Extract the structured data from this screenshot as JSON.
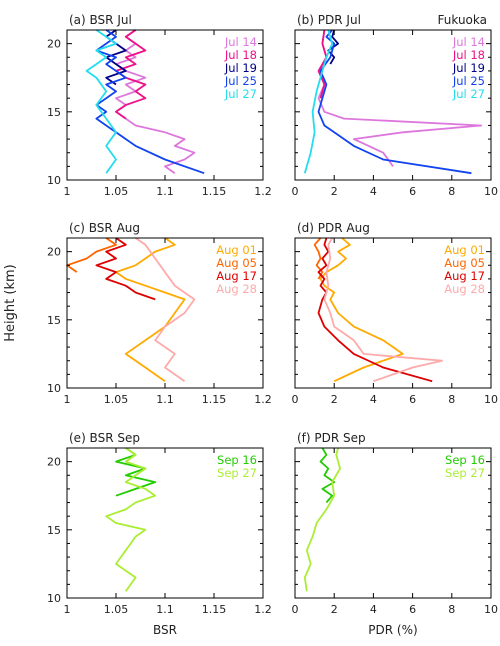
{
  "figure": {
    "ylabel": "Height (km)"
  },
  "chart_data": [
    {
      "type": "line",
      "title": "(a) BSR Jul",
      "xlabel": "",
      "ylabel": "Height (km)",
      "xlim": [
        1,
        1.2
      ],
      "ylim": [
        10,
        21
      ],
      "xticks": [
        "1",
        "1.05",
        "1.1",
        "1.15",
        "1.2"
      ],
      "yticks": [
        "10",
        "15",
        "20"
      ],
      "series": [
        {
          "name": "Jul 14",
          "color": "#dd77dd",
          "y": [
            10.5,
            11.0,
            11.5,
            12.0,
            12.5,
            13.0,
            13.5,
            14.0,
            14.5,
            15.0,
            15.5,
            16.0,
            16.5,
            17.0,
            17.5,
            18.0,
            18.5,
            19.0,
            19.5,
            20.0,
            20.5,
            21.0
          ],
          "x": [
            1.11,
            1.1,
            1.12,
            1.13,
            1.11,
            1.12,
            1.1,
            1.07,
            1.06,
            1.05,
            1.06,
            1.05,
            1.07,
            1.06,
            1.08,
            1.06,
            1.05,
            1.07,
            1.06,
            1.07,
            1.06,
            1.07
          ]
        },
        {
          "name": "Jul 18",
          "color": "#ee1188",
          "y": [
            14.5,
            15.0,
            15.5,
            16.0,
            16.5,
            17.0,
            17.5,
            18.0,
            18.5,
            19.0,
            19.5,
            20.0,
            20.5,
            21.0
          ],
          "x": [
            1.06,
            1.05,
            1.06,
            1.08,
            1.07,
            1.08,
            1.06,
            1.05,
            1.07,
            1.06,
            1.08,
            1.07,
            1.06,
            1.07
          ]
        },
        {
          "name": "Jul 19",
          "color": "#000088",
          "y": [
            17.0,
            17.5,
            18.0,
            18.5,
            19.0,
            19.5,
            20.0,
            20.5,
            21.0
          ],
          "x": [
            1.05,
            1.04,
            1.06,
            1.05,
            1.04,
            1.06,
            1.05,
            1.04,
            1.05
          ]
        },
        {
          "name": "Jul 25",
          "color": "#1144ee",
          "y": [
            10.5,
            11.5,
            12.5,
            13.5,
            14.0,
            14.5,
            15.0,
            15.5,
            16.0,
            16.5,
            17.0,
            17.5,
            18.0,
            18.5,
            19.0,
            19.5,
            20.0,
            20.5,
            21.0
          ],
          "x": [
            1.14,
            1.1,
            1.07,
            1.05,
            1.04,
            1.03,
            1.04,
            1.03,
            1.04,
            1.05,
            1.04,
            1.06,
            1.05,
            1.04,
            1.05,
            1.03,
            1.04,
            1.05,
            1.04
          ]
        },
        {
          "name": "Jul 27",
          "color": "#22ddee",
          "y": [
            10.5,
            11.5,
            12.5,
            13.5,
            14.5,
            15.5,
            16.5,
            17.5,
            18.0,
            18.5,
            19.0,
            19.5,
            20.0,
            20.5,
            21.0
          ],
          "x": [
            1.04,
            1.05,
            1.04,
            1.05,
            1.04,
            1.03,
            1.04,
            1.03,
            1.02,
            1.03,
            1.04,
            1.03,
            1.05,
            1.04,
            1.03
          ]
        }
      ]
    },
    {
      "type": "line",
      "title": "(b) PDR Jul",
      "annotation": "Fukuoka",
      "xlabel": "",
      "xlim": [
        0,
        10
      ],
      "ylim": [
        10,
        21
      ],
      "xticks": [
        "0",
        "2",
        "4",
        "6",
        "8",
        "10"
      ],
      "yticks": [],
      "series": [
        {
          "name": "Jul 14",
          "color": "#dd77dd",
          "y": [
            11.0,
            12.0,
            13.0,
            13.5,
            14.0,
            14.5,
            15.0,
            16.0,
            17.0,
            18.0,
            19.0,
            20.0,
            21.0
          ],
          "x": [
            5.0,
            4.5,
            3.0,
            5.5,
            9.5,
            2.5,
            1.5,
            1.2,
            1.5,
            1.3,
            1.6,
            1.4,
            1.5
          ]
        },
        {
          "name": "Jul 18",
          "color": "#ee1188",
          "y": [
            16.0,
            17.0,
            18.0,
            19.0,
            20.0,
            21.0
          ],
          "x": [
            1.3,
            1.5,
            1.2,
            1.6,
            1.4,
            1.5
          ]
        },
        {
          "name": "Jul 19",
          "color": "#000088",
          "y": [
            18.5,
            19.0,
            19.5,
            20.0,
            20.5,
            21.0
          ],
          "x": [
            1.8,
            2.0,
            1.7,
            2.2,
            1.9,
            2.0
          ]
        },
        {
          "name": "Jul 25",
          "color": "#1144ee",
          "y": [
            10.5,
            11.5,
            12.5,
            13.5,
            14.0,
            15.0,
            16.0,
            17.0,
            18.0,
            19.0,
            20.0,
            20.5,
            21.0
          ],
          "x": [
            9.0,
            4.5,
            3.0,
            2.0,
            1.5,
            1.2,
            1.4,
            1.6,
            1.3,
            1.8,
            2.0,
            1.6,
            1.9
          ]
        },
        {
          "name": "Jul 27",
          "color": "#22ddee",
          "y": [
            10.5,
            12.0,
            13.5,
            15.0,
            16.5,
            18.0,
            19.0,
            20.0,
            21.0
          ],
          "x": [
            0.5,
            0.8,
            1.0,
            0.9,
            1.1,
            1.4,
            1.6,
            1.9,
            1.7
          ]
        }
      ]
    },
    {
      "type": "line",
      "title": "(c) BSR Aug",
      "xlabel": "",
      "xlim": [
        1,
        1.2
      ],
      "ylim": [
        10,
        21
      ],
      "xticks": [
        "1",
        "1.05",
        "1.1",
        "1.15",
        "1.2"
      ],
      "yticks": [
        "10",
        "15",
        "20"
      ],
      "series": [
        {
          "name": "Aug 01",
          "color": "#ffaa00",
          "y": [
            10.5,
            11.5,
            12.5,
            13.5,
            14.5,
            15.5,
            16.5,
            17.0,
            17.5,
            18.0,
            18.5,
            19.0,
            19.5,
            20.0,
            20.5,
            21.0
          ],
          "x": [
            1.1,
            1.08,
            1.06,
            1.08,
            1.1,
            1.11,
            1.12,
            1.1,
            1.08,
            1.06,
            1.05,
            1.07,
            1.08,
            1.09,
            1.11,
            1.1
          ]
        },
        {
          "name": "Aug 05",
          "color": "#ff6600",
          "y": [
            18.5,
            19.0,
            19.5,
            20.0,
            20.5,
            21.0
          ],
          "x": [
            1.01,
            1.0,
            1.02,
            1.03,
            1.05,
            1.04
          ]
        },
        {
          "name": "Aug 17",
          "color": "#dd0000",
          "y": [
            16.5,
            17.0,
            17.5,
            18.0,
            18.5,
            19.0,
            19.5,
            20.0,
            20.5,
            21.0
          ],
          "x": [
            1.09,
            1.07,
            1.06,
            1.04,
            1.05,
            1.03,
            1.05,
            1.04,
            1.06,
            1.05
          ]
        },
        {
          "name": "Aug 28",
          "color": "#ffaaaa",
          "y": [
            10.5,
            11.5,
            12.5,
            13.5,
            14.5,
            15.5,
            16.5,
            17.5,
            18.5,
            19.5,
            20.5,
            21.0
          ],
          "x": [
            1.12,
            1.1,
            1.11,
            1.09,
            1.1,
            1.12,
            1.13,
            1.11,
            1.1,
            1.09,
            1.08,
            1.07
          ]
        }
      ]
    },
    {
      "type": "line",
      "title": "(d) PDR Aug",
      "xlabel": "",
      "xlim": [
        0,
        10
      ],
      "ylim": [
        10,
        21
      ],
      "xticks": [
        "0",
        "2",
        "4",
        "6",
        "8",
        "10"
      ],
      "yticks": [],
      "series": [
        {
          "name": "Aug 01",
          "color": "#ffaa00",
          "y": [
            10.5,
            11.5,
            12.5,
            13.5,
            14.5,
            15.5,
            16.5,
            17.0,
            17.5,
            18.0,
            18.5,
            19.0,
            19.5,
            20.0,
            20.5,
            21.0
          ],
          "x": [
            2.0,
            3.5,
            5.5,
            4.5,
            3.0,
            2.2,
            1.8,
            2.0,
            1.5,
            1.3,
            1.6,
            2.2,
            2.6,
            2.2,
            2.8,
            2.4
          ]
        },
        {
          "name": "Aug 05",
          "color": "#ff6600",
          "y": [
            18.0,
            18.5,
            19.0,
            19.5,
            20.0,
            20.5,
            21.0
          ],
          "x": [
            1.2,
            1.4,
            1.1,
            1.3,
            1.2,
            1.0,
            1.3
          ]
        },
        {
          "name": "Aug 17",
          "color": "#dd0000",
          "y": [
            10.5,
            11.5,
            12.5,
            13.5,
            14.5,
            15.5,
            16.5,
            17.0,
            17.5,
            18.0,
            18.5,
            19.0,
            19.5,
            20.0,
            20.5,
            21.0
          ],
          "x": [
            7.0,
            4.5,
            3.0,
            2.2,
            1.5,
            1.2,
            1.4,
            1.6,
            1.3,
            1.5,
            1.2,
            1.6,
            1.4,
            1.7,
            1.5,
            1.6
          ]
        },
        {
          "name": "Aug 28",
          "color": "#ffaaaa",
          "y": [
            10.5,
            11.5,
            12.0,
            12.5,
            13.5,
            14.5,
            15.5,
            16.5,
            17.5,
            18.5,
            19.5,
            20.5,
            21.0
          ],
          "x": [
            4.0,
            6.0,
            7.5,
            3.5,
            3.0,
            2.0,
            1.8,
            1.5,
            1.7,
            1.6,
            1.8,
            1.7,
            1.9
          ]
        }
      ]
    },
    {
      "type": "line",
      "title": "(e) BSR Sep",
      "xlabel": "BSR",
      "xlim": [
        1,
        1.2
      ],
      "ylim": [
        10,
        21
      ],
      "xticks": [
        "1",
        "1.05",
        "1.1",
        "1.15",
        "1.2"
      ],
      "yticks": [
        "10",
        "15",
        "20"
      ],
      "series": [
        {
          "name": "Sep 16",
          "color": "#22cc00",
          "y": [
            17.5,
            18.0,
            18.5,
            19.0,
            19.5,
            20.0,
            20.5,
            21.0
          ],
          "x": [
            1.05,
            1.07,
            1.09,
            1.06,
            1.08,
            1.05,
            1.07,
            1.06
          ]
        },
        {
          "name": "Sep 27",
          "color": "#aaee33",
          "y": [
            10.5,
            11.5,
            12.5,
            13.5,
            14.5,
            15.0,
            15.5,
            16.0,
            16.5,
            17.0,
            17.5,
            18.0,
            18.5,
            19.0,
            19.5,
            20.0,
            20.5,
            21.0
          ],
          "x": [
            1.06,
            1.07,
            1.05,
            1.06,
            1.07,
            1.08,
            1.05,
            1.04,
            1.06,
            1.07,
            1.09,
            1.08,
            1.06,
            1.07,
            1.08,
            1.06,
            1.07,
            1.06
          ]
        }
      ]
    },
    {
      "type": "line",
      "title": "(f) PDR Sep",
      "xlabel": "PDR (%)",
      "xlim": [
        0,
        10
      ],
      "ylim": [
        10,
        21
      ],
      "xticks": [
        "0",
        "2",
        "4",
        "6",
        "8",
        "10"
      ],
      "yticks": [],
      "series": [
        {
          "name": "Sep 16",
          "color": "#22cc00",
          "y": [
            17.0,
            17.5,
            18.0,
            18.5,
            19.0,
            19.5,
            20.0,
            20.5,
            21.0
          ],
          "x": [
            1.6,
            1.9,
            1.4,
            2.0,
            1.5,
            1.7,
            1.3,
            1.6,
            1.4
          ]
        },
        {
          "name": "Sep 27",
          "color": "#aaee33",
          "y": [
            10.5,
            11.5,
            12.5,
            13.5,
            14.5,
            15.5,
            16.5,
            17.5,
            18.5,
            19.5,
            20.5,
            21.0
          ],
          "x": [
            0.6,
            0.5,
            0.8,
            0.6,
            0.9,
            1.1,
            1.6,
            2.0,
            1.9,
            2.3,
            2.1,
            2.2
          ]
        }
      ]
    }
  ]
}
